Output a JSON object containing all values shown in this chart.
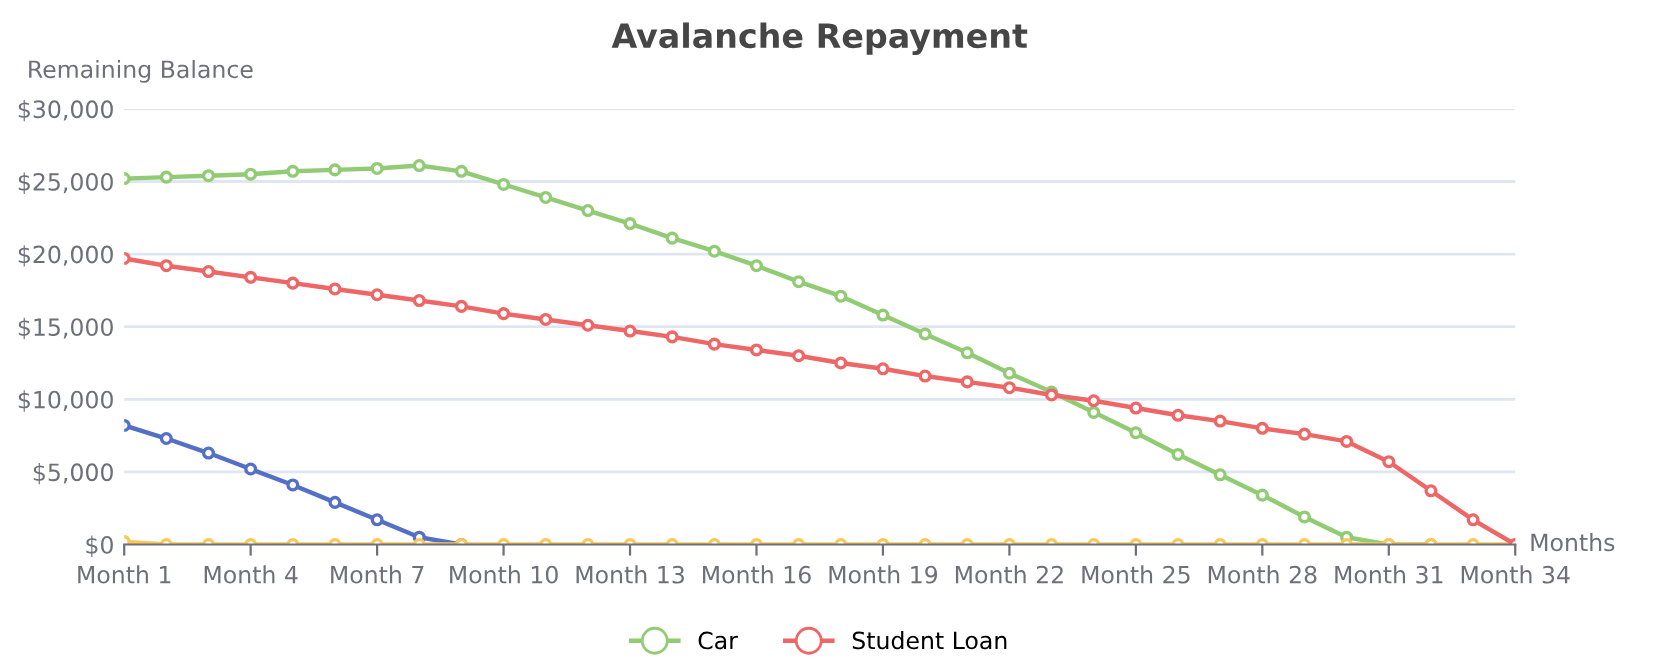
{
  "chart_data": {
    "type": "line",
    "title": "Avalanche Repayment",
    "xlabel": "Months",
    "ylabel": "Remaining Balance",
    "categories": [
      "Month 1",
      null,
      null,
      "Month 4",
      null,
      null,
      "Month 7",
      null,
      null,
      "Month 10",
      null,
      null,
      "Month 13",
      null,
      null,
      "Month 16",
      null,
      null,
      "Month 19",
      null,
      null,
      "Month 22",
      null,
      null,
      "Month 25",
      null,
      null,
      "Month 28",
      null,
      null,
      "Month 31",
      null,
      null,
      "Month 34"
    ],
    "series": [
      {
        "color": "#5470c6",
        "values": [
          8200,
          7300,
          6300,
          5200,
          4100,
          2900,
          1700,
          500,
          0,
          null,
          null,
          null,
          null,
          null,
          null,
          null,
          null,
          null,
          null,
          null,
          null,
          null,
          null,
          null,
          null,
          null,
          null,
          null,
          null,
          null,
          null,
          null,
          null,
          null
        ]
      },
      {
        "name": "Car",
        "color": "#91cc75",
        "values": [
          25200,
          25300,
          25400,
          25500,
          25700,
          25800,
          25900,
          26100,
          25700,
          24800,
          23900,
          23000,
          22100,
          21100,
          20200,
          19200,
          18100,
          17100,
          15800,
          14500,
          13200,
          11800,
          10500,
          9100,
          7700,
          6200,
          4800,
          3400,
          1900,
          500,
          0,
          0,
          null,
          null
        ]
      },
      {
        "color": "#fac858",
        "values": [
          200,
          0,
          0,
          0,
          0,
          0,
          0,
          0,
          0,
          0,
          0,
          0,
          0,
          0,
          0,
          0,
          0,
          0,
          0,
          0,
          0,
          0,
          0,
          0,
          0,
          0,
          0,
          0,
          0,
          0,
          0,
          0,
          0,
          0
        ]
      },
      {
        "name": "Student Loan",
        "color": "#ee6666",
        "values": [
          19700,
          19200,
          18800,
          18400,
          18000,
          17600,
          17200,
          16800,
          16400,
          15900,
          15500,
          15100,
          14700,
          14300,
          13800,
          13400,
          13000,
          12500,
          12100,
          11600,
          11200,
          10800,
          10300,
          9900,
          9400,
          8900,
          8500,
          8000,
          7600,
          7100,
          5700,
          3700,
          1700,
          0
        ]
      }
    ],
    "ylim": [
      0,
      30000
    ],
    "yticks": [
      {
        "value": 0,
        "label": "$0"
      },
      {
        "value": 5000,
        "label": "$5,000"
      },
      {
        "value": 10000,
        "label": "$10,000"
      },
      {
        "value": 15000,
        "label": "$15,000"
      },
      {
        "value": 20000,
        "label": "$20,000"
      },
      {
        "value": 25000,
        "label": "$25,000"
      },
      {
        "value": 30000,
        "label": "$30,000"
      }
    ],
    "grid": "y",
    "legend": "bottom",
    "marker": "circle",
    "line_style": "solid"
  }
}
